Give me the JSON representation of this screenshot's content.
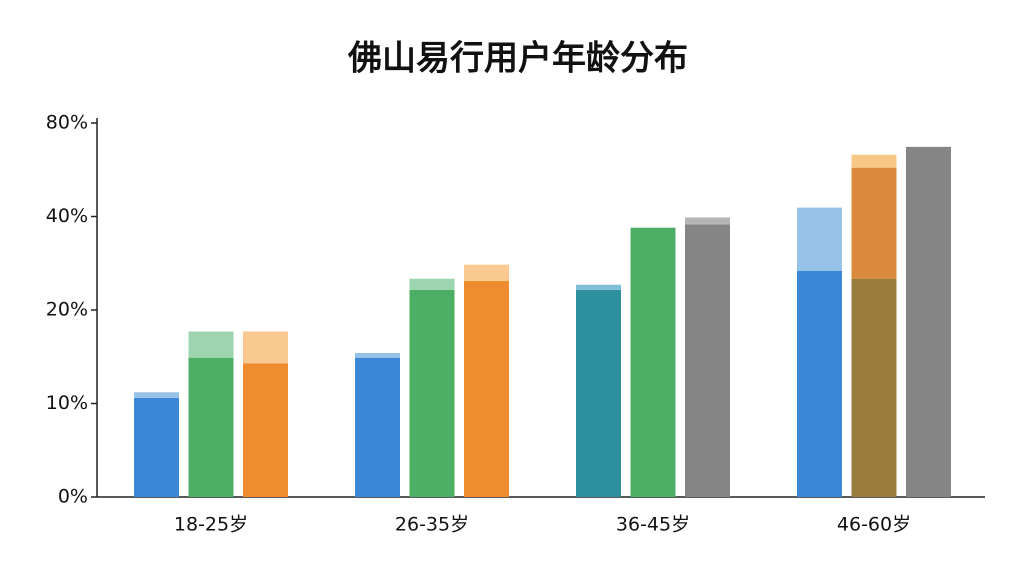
{
  "chart_data": {
    "type": "bar",
    "title": "佛山易行用户年龄分布",
    "categories": [
      "18-25岁",
      "26-35岁",
      "36-45岁",
      "46-60岁"
    ],
    "groups": [
      {
        "bars": [
          {
            "values": [
              10.6,
              0.6
            ],
            "colors": [
              "#3a87d6",
              "#96c2e8"
            ]
          },
          {
            "values": [
              14.9,
              2.8
            ],
            "colors": [
              "#4caf65",
              "#9dd6ae"
            ]
          },
          {
            "values": [
              14.3,
              3.4
            ],
            "colors": [
              "#f08c30",
              "#f9c98f"
            ]
          }
        ]
      },
      {
        "bars": [
          {
            "values": [
              14.9,
              0.5
            ],
            "colors": [
              "#3a87d6",
              "#96c2e8"
            ]
          },
          {
            "values": [
              24.3,
              2.4
            ],
            "colors": [
              "#4caf65",
              "#9dd6ae"
            ]
          },
          {
            "values": [
              26.2,
              3.5
            ],
            "colors": [
              "#f08c30",
              "#f9c98f"
            ]
          }
        ]
      },
      {
        "bars": [
          {
            "values": [
              24.3,
              1.1
            ],
            "colors": [
              "#2e8f9e",
              "#7fbfd6"
            ]
          },
          {
            "values": [
              37.6
            ],
            "colors": [
              "#4caf65"
            ]
          },
          {
            "values": [
              38.3,
              1.5
            ],
            "colors": [
              "#858585",
              "#b5b5b5"
            ]
          }
        ]
      },
      {
        "bars": [
          {
            "values": [
              28.4,
              15.4
            ],
            "colors": [
              "#3a87d6",
              "#96c2e8"
            ]
          },
          {
            "values": [
              26.7,
              34.2,
              5.5
            ],
            "colors": [
              "#9a7d3a",
              "#d98a3c",
              "#f7c785"
            ]
          },
          {
            "values": [
              69.8
            ],
            "colors": [
              "#858585"
            ]
          }
        ]
      }
    ],
    "ylim": [
      0,
      80
    ],
    "yticks": [
      {
        "value": 0,
        "label": "0%"
      },
      {
        "value": 10,
        "label": "10%"
      },
      {
        "value": 20,
        "label": "20%"
      },
      {
        "value": 40,
        "label": "40%"
      },
      {
        "value": 80,
        "label": "80%"
      }
    ]
  }
}
